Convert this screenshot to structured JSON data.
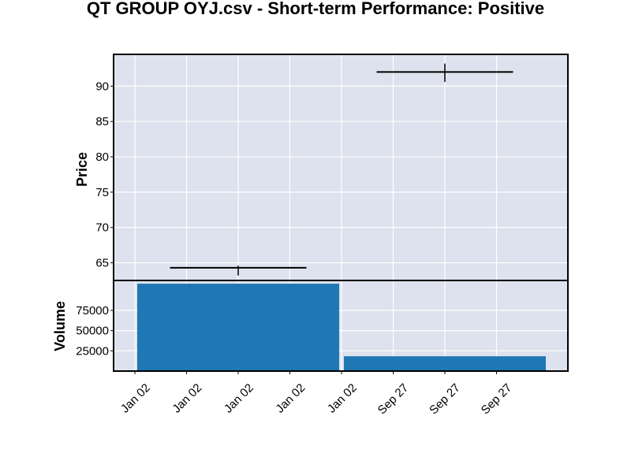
{
  "chart_data": {
    "type": "ohlc",
    "title": "QT GROUP OYJ.csv - Short-term Performance: Positive",
    "price_label": "Price",
    "volume_label": "Volume",
    "x_tick_labels": [
      "Jan 02",
      "Jan 02",
      "Jan 02",
      "Jan 02",
      "Jan 02",
      "Sep 27",
      "Sep 27",
      "Sep 27"
    ],
    "price_ylim": [
      62.5,
      94.5
    ],
    "price_ticks": [
      65,
      70,
      75,
      80,
      85,
      90
    ],
    "volume_ylim": [
      0,
      112000
    ],
    "volume_ticks": [
      25000,
      50000,
      75000
    ],
    "candles": [
      {
        "open": 64.3,
        "high": 64.6,
        "low": 63.2,
        "close": 64.3,
        "volume": 108000
      },
      {
        "open": 92.0,
        "high": 93.2,
        "low": 90.6,
        "close": 92.0,
        "volume": 18300
      }
    ],
    "colors": {
      "panel_bg": "#dde2ee",
      "volume_bar": "#1f77b4",
      "ohlc": "#000000",
      "grid": "#ffffff"
    }
  }
}
